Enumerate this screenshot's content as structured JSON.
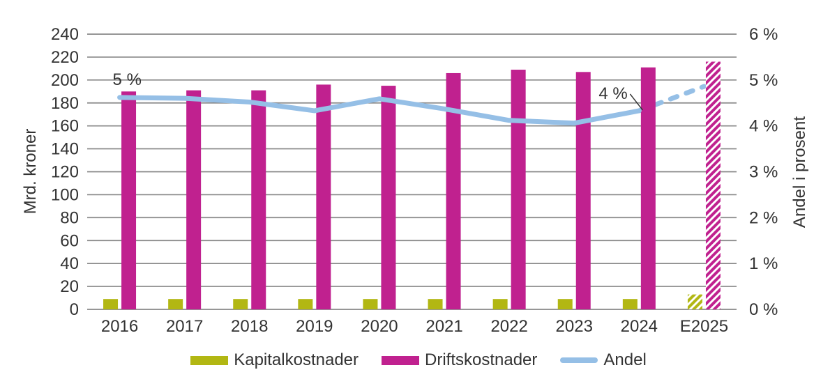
{
  "chart_data": {
    "type": "combo",
    "categories": [
      "2016",
      "2017",
      "2018",
      "2019",
      "2020",
      "2021",
      "2022",
      "2023",
      "2024",
      "E2025"
    ],
    "series": [
      {
        "name": "Kapitalkostnader",
        "type": "bar",
        "axis": "left",
        "color": "#B2B713",
        "values": [
          9,
          9,
          9,
          9,
          9,
          9,
          9,
          9,
          9,
          13
        ],
        "hatched_categories": [
          "E2025"
        ]
      },
      {
        "name": "Driftskostnader",
        "type": "bar",
        "axis": "left",
        "color": "#C0218F",
        "values": [
          190,
          191,
          191,
          196,
          195,
          206,
          209,
          207,
          211,
          216
        ],
        "hatched_categories": [
          "E2025"
        ]
      },
      {
        "name": "Andel",
        "type": "line",
        "axis": "right",
        "color": "#95BFE6",
        "values": [
          4.62,
          4.6,
          4.52,
          4.33,
          4.59,
          4.37,
          4.12,
          4.06,
          4.33,
          4.86
        ],
        "dashed_from_category": "2024"
      }
    ],
    "left_axis": {
      "title": "Mrd. kroner",
      "min": 0,
      "max": 240,
      "tick_step": 20,
      "tick_labels": [
        "0",
        "20",
        "40",
        "60",
        "80",
        "100",
        "120",
        "140",
        "160",
        "180",
        "200",
        "220",
        "240"
      ]
    },
    "right_axis": {
      "title": "Andel i prosent",
      "min": 0,
      "max": 6,
      "tick_step": 1,
      "tick_labels": [
        "0 %",
        "1 %",
        "2 %",
        "3 %",
        "4 %",
        "5 %",
        "6 %"
      ]
    },
    "annotations": [
      {
        "text": "5 %",
        "category": "2016",
        "series": "Andel"
      },
      {
        "text": "4 %",
        "category": "2024",
        "series": "Andel"
      }
    ],
    "grid": true,
    "legend_position": "bottom"
  },
  "colors": {
    "grid": "#878787",
    "text": "#333333",
    "background": "#FFFFFF"
  }
}
